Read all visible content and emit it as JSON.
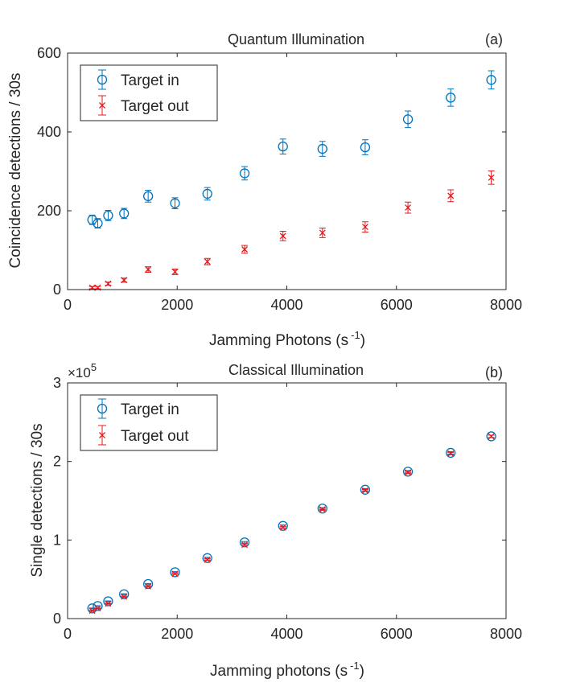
{
  "chart_data": [
    {
      "type": "scatter",
      "title": "Quantum Illumination",
      "panel_label": "(a)",
      "xlabel": "Jamming Photons (s",
      "xlabel_sup": "-1",
      "xlabel_close": ")",
      "ylabel": "Coincidence detections / 30s",
      "xlim": [
        0,
        8000
      ],
      "ylim": [
        0,
        600
      ],
      "x_ticks": [
        0,
        2000,
        4000,
        6000,
        8000
      ],
      "y_ticks": [
        0,
        200,
        400,
        600
      ],
      "grid": false,
      "legend": "top-left",
      "series": [
        {
          "name": "Target in",
          "marker": "circle",
          "color": "#0072BD",
          "x": [
            450,
            550,
            740,
            1030,
            1470,
            1960,
            2550,
            3230,
            3930,
            4650,
            5430,
            6210,
            6990,
            7730
          ],
          "y": [
            177,
            168,
            188,
            193,
            237,
            219,
            243,
            295,
            363,
            357,
            361,
            432,
            487,
            532
          ],
          "err": [
            12,
            12,
            13,
            13,
            15,
            14,
            16,
            17,
            19,
            19,
            19,
            21,
            22,
            23
          ]
        },
        {
          "name": "Target out",
          "marker": "cross",
          "color": "#E41A1C",
          "x": [
            450,
            550,
            740,
            1030,
            1470,
            1960,
            2550,
            3230,
            3930,
            4650,
            5430,
            6210,
            6990,
            7730
          ],
          "y": [
            5,
            5,
            15,
            24,
            51,
            45,
            71,
            102,
            136,
            144,
            159,
            208,
            238,
            284
          ],
          "err": [
            3,
            3,
            4,
            5,
            7,
            7,
            8,
            10,
            12,
            12,
            13,
            14,
            15,
            17
          ]
        }
      ]
    },
    {
      "type": "scatter",
      "title": "Classical Illumination",
      "panel_label": "(b)",
      "exponent_label": "×10",
      "exponent_sup": "5",
      "xlabel": "Jamming photons (s",
      "xlabel_sup": "-1",
      "xlabel_close": ")",
      "ylabel": "Single detections / 30s",
      "xlim": [
        0,
        8000
      ],
      "ylim": [
        0,
        3
      ],
      "x_ticks": [
        0,
        2000,
        4000,
        6000,
        8000
      ],
      "y_ticks": [
        0,
        1,
        2,
        3
      ],
      "grid": false,
      "legend": "top-left",
      "series": [
        {
          "name": "Target in",
          "marker": "circle",
          "color": "#0072BD",
          "x": [
            450,
            550,
            740,
            1030,
            1470,
            1960,
            2550,
            3230,
            3930,
            4650,
            5430,
            6210,
            6990,
            7730
          ],
          "y": [
            0.13,
            0.16,
            0.22,
            0.31,
            0.44,
            0.59,
            0.77,
            0.97,
            1.18,
            1.4,
            1.64,
            1.87,
            2.11,
            2.32
          ],
          "err": [
            0.004,
            0.004,
            0.005,
            0.006,
            0.007,
            0.008,
            0.009,
            0.01,
            0.011,
            0.012,
            0.013,
            0.014,
            0.015,
            0.015
          ]
        },
        {
          "name": "Target out",
          "marker": "cross",
          "color": "#E41A1C",
          "x": [
            450,
            550,
            740,
            1030,
            1470,
            1960,
            2550,
            3230,
            3930,
            4650,
            5430,
            6210,
            6990,
            7730
          ],
          "y": [
            0.1,
            0.13,
            0.19,
            0.28,
            0.41,
            0.57,
            0.75,
            0.94,
            1.16,
            1.39,
            1.63,
            1.86,
            2.1,
            2.32
          ],
          "err": [
            0.004,
            0.004,
            0.005,
            0.006,
            0.007,
            0.008,
            0.009,
            0.01,
            0.011,
            0.012,
            0.013,
            0.014,
            0.015,
            0.015
          ]
        }
      ]
    }
  ]
}
